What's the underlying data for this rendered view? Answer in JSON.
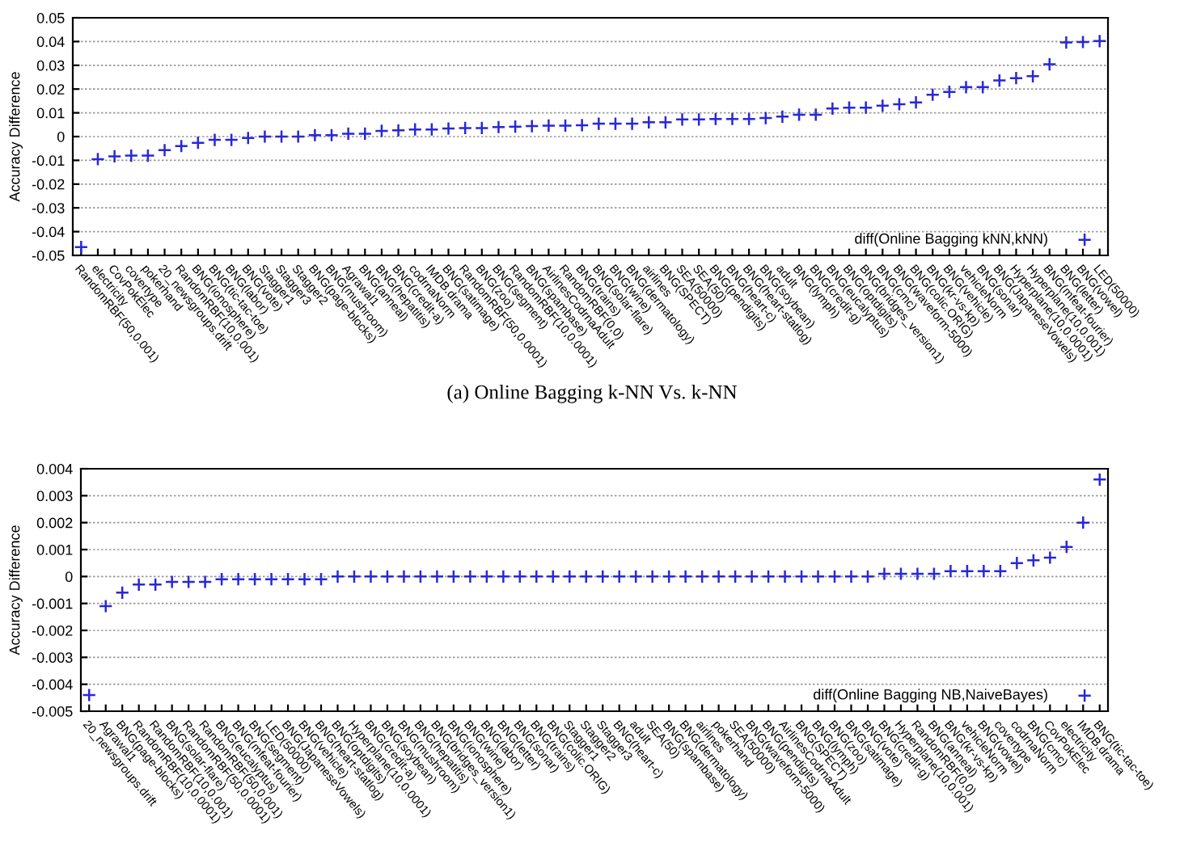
{
  "chart_data": [
    {
      "type": "scatter",
      "ylabel": "Accuracy Difference",
      "marker": "cross",
      "grid": "y",
      "legend": "bottom right",
      "categories": [
        "RandomRBF(50,0.001)",
        "electricity",
        "CovPokElec",
        "covertype",
        "pokerhand",
        "20_newsgroups.drift",
        "RandomRBF(10,0.001)",
        "BNG(ionosphere)",
        "BNG(tic-tac-toe)",
        "BNG(labor)",
        "BNG(vote)",
        "Stagger1",
        "Stagger3",
        "Stagger2",
        "BNG(page-blocks)",
        "BNG(mushroom)",
        "Agrawal1",
        "BNG(anneal)",
        "BNG(hepatitis)",
        "BNG(credit-a)",
        "codrnaNorm",
        "IMDB.drama",
        "BNG(satimage)",
        "RandomRBF(50,0.0001)",
        "BNG(zoo)",
        "BNG(segment)",
        "RandomRBF(10,0.0001)",
        "BNG(spambase)",
        "AirlinesCodrnaAdult",
        "RandomRBF(0,0)",
        "BNG(trains)",
        "BNG(solar-flare)",
        "BNG(wine)",
        "BNG(dermatology)",
        "airlines",
        "BNG(SPECT)",
        "SEA(50000)",
        "SEA(50)",
        "BNG(pendigits)",
        "BNG(heart-c)",
        "BNG(heart-statlog)",
        "BNG(soybean)",
        "adult",
        "BNG(lymph)",
        "BNG(credit-g)",
        "BNG(eucalyptus)",
        "BNG(optdigits)",
        "BNG(bridges_version1)",
        "BNG(cmc)",
        "BNG(waveform-5000)",
        "BNG(colic.ORIG)",
        "BNG(kr-vs-kp)",
        "BNG(vehicle)",
        "vehicleNorm",
        "BNG(sonar)",
        "BNG(JapaneseVowels)",
        "Hyperplane(10,0.0001)",
        "Hyperplane(10,0.001)",
        "BNG(mfeat-fourier)",
        "BNG(letter)",
        "BNG(vowel)",
        "LED(50000)"
      ],
      "series": [
        {
          "name": "diff(Online Bagging kNN,kNN)",
          "color": "#2828d8",
          "values": [
            -0.0465,
            -0.0095,
            -0.0083,
            -0.008,
            -0.008,
            -0.0057,
            -0.004,
            -0.0026,
            -0.0014,
            -0.0014,
            -0.0006,
            0,
            0,
            0,
            0.0006,
            0.0006,
            0.0012,
            0.0012,
            0.0024,
            0.0026,
            0.003,
            0.003,
            0.0034,
            0.0036,
            0.0036,
            0.004,
            0.0042,
            0.0044,
            0.0046,
            0.0046,
            0.0048,
            0.0054,
            0.0054,
            0.0054,
            0.006,
            0.006,
            0.0072,
            0.0072,
            0.0074,
            0.0074,
            0.0074,
            0.0078,
            0.0084,
            0.0092,
            0.0092,
            0.0118,
            0.0122,
            0.0122,
            0.013,
            0.0136,
            0.0144,
            0.0176,
            0.0188,
            0.0208,
            0.0208,
            0.0236,
            0.0246,
            0.0254,
            0.0304,
            0.0396,
            0.0398,
            0.0402
          ]
        }
      ],
      "ylim": [
        -0.05,
        0.05
      ],
      "yticks": [
        -0.05,
        -0.04,
        -0.03,
        -0.02,
        -0.01,
        0,
        0.01,
        0.02,
        0.03,
        0.04,
        0.05
      ],
      "annotations": [
        "(a) Online Bagging k-NN Vs. k-NN"
      ]
    },
    {
      "type": "scatter",
      "ylabel": "Accuracy Difference",
      "marker": "cross",
      "grid": "y",
      "legend": "bottom right",
      "categories": [
        "20_newsgroups.drift",
        "Agrawal1",
        "BNG(page-blocks)",
        "RandomRBF(10,0.0001)",
        "RandomRBF(10,0.001)",
        "BNG(solar-flare)",
        "RandomRBF(50,0.0001)",
        "RandomRBF(50,0.001)",
        "BNG(eucalyptus)",
        "BNG(mfeat-fourier)",
        "BNG(segment)",
        "LED(50000)",
        "BNG(JapaneseVowels)",
        "BNG(vehicle)",
        "BNG(heart-statlog)",
        "BNG(optdigits)",
        "Hyperplane(10,0.0001)",
        "BNG(credit-a)",
        "BNG(soybean)",
        "BNG(mushroom)",
        "BNG(hepatitis)",
        "BNG(bridges_version1)",
        "BNG(ionosphere)",
        "BNG(wine)",
        "BNG(labor)",
        "BNG(letter)",
        "BNG(sonar)",
        "BNG(trains)",
        "BNG(colic.ORIG)",
        "Stagger1",
        "Stagger2",
        "Stagger3",
        "BNG(heart-c)",
        "adult",
        "SEA(50)",
        "BNG(spambase)",
        "BNG(dermatology)",
        "airlines",
        "pokerhand",
        "SEA(50000)",
        "BNG(waveform-5000)",
        "BNG(pendigits)",
        "AirlinesCodrnaAdult",
        "BNG(SPECT)",
        "BNG(lymph)",
        "BNG(zoo)",
        "BNG(satimage)",
        "BNG(vote)",
        "BNG(credit-g)",
        "Hyperplane(10,0.001)",
        "RandomRBF(0,0)",
        "BNG(anneal)",
        "BNG(kr-vs-kp)",
        "vehicleNorm",
        "BNG(vowel)",
        "covertype",
        "codrnaNorm",
        "BNG(cmc)",
        "CovPokElec",
        "electricity",
        "IMDB.drama",
        "BNG(tic-tac-toe)"
      ],
      "series": [
        {
          "name": "diff(Online Bagging NB,NaiveBayes)",
          "color": "#2828d8",
          "values": [
            -0.0044,
            -0.0011,
            -0.0006,
            -0.0003,
            -0.0003,
            -0.0002,
            -0.0002,
            -0.0002,
            -0.0001,
            -0.0001,
            -0.0001,
            -0.0001,
            -0.0001,
            -0.0001,
            -0.0001,
            0,
            0,
            0,
            0,
            0,
            0,
            0,
            0,
            0,
            0,
            0,
            0,
            0,
            0,
            0,
            0,
            0,
            0,
            0,
            0,
            0,
            0,
            0,
            0,
            0,
            0,
            0,
            0,
            0,
            0,
            0,
            0,
            0,
            0.0001,
            0.0001,
            0.0001,
            0.0001,
            0.0002,
            0.0002,
            0.0002,
            0.0002,
            0.0005,
            0.0006,
            0.0007,
            0.0011,
            0.002,
            0.0036
          ]
        }
      ],
      "ylim": [
        -0.005,
        0.004
      ],
      "yticks": [
        -0.005,
        -0.004,
        -0.003,
        -0.002,
        -0.001,
        0,
        0.001,
        0.002,
        0.003,
        0.004
      ]
    }
  ]
}
